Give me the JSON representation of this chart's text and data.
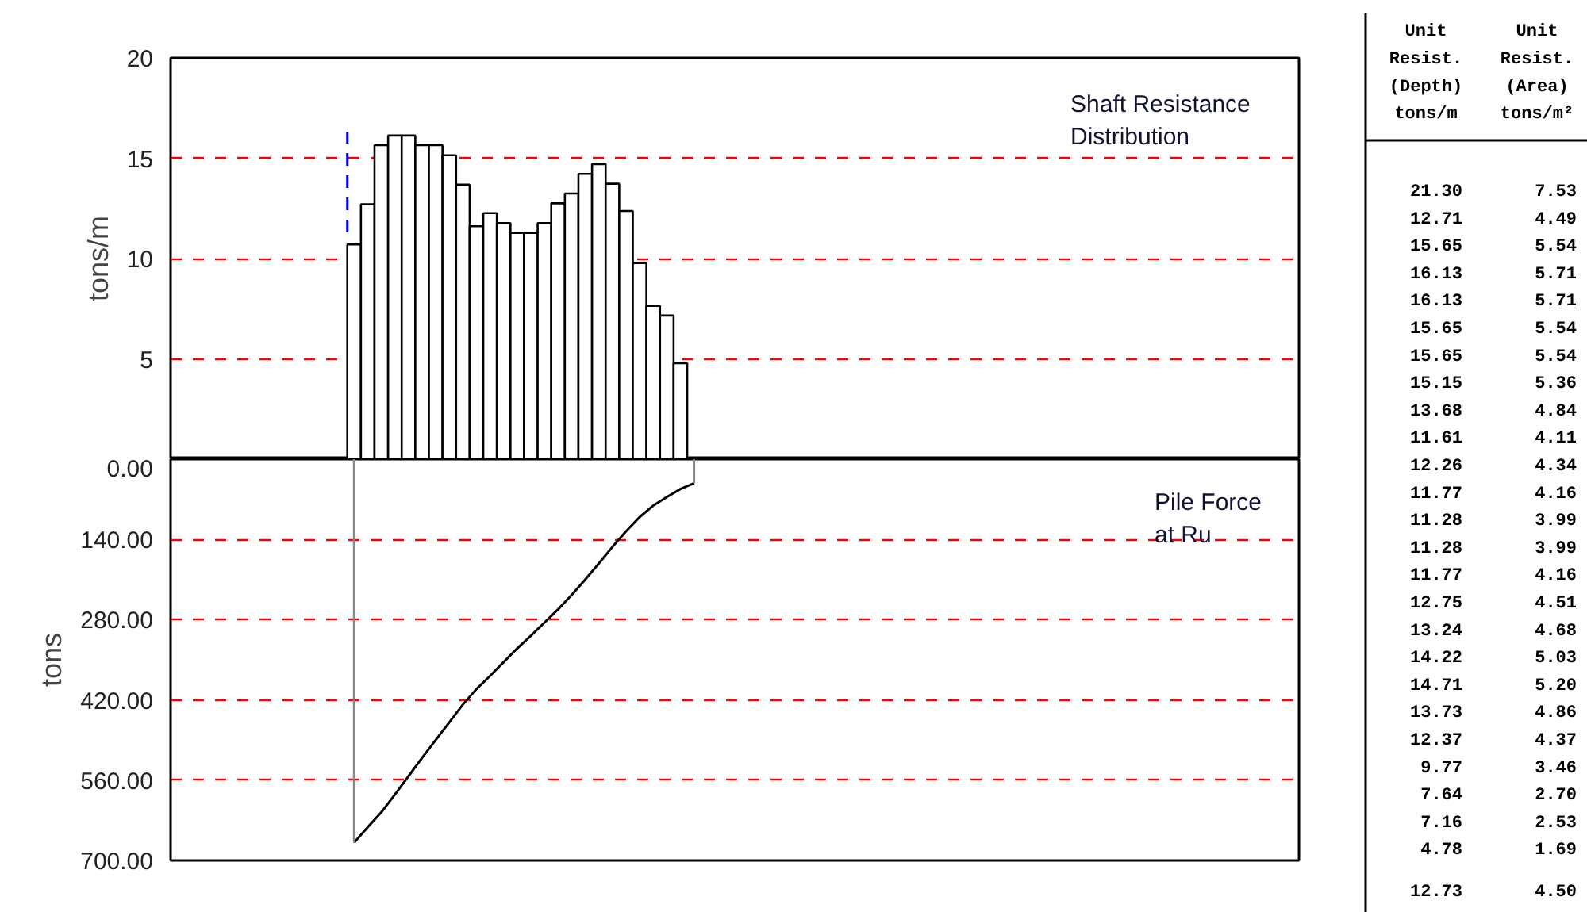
{
  "chart_data": [
    {
      "type": "bar",
      "ylabel": "tons/m",
      "annotations": [
        "Shaft Resistance\nDistribution"
      ],
      "ylim": [
        0,
        20
      ],
      "yticks": [
        5,
        10,
        15,
        20
      ],
      "grid": "y",
      "categories": [
        null,
        null,
        null,
        null,
        null,
        null,
        null,
        null,
        null,
        null,
        null,
        null,
        null,
        null,
        null,
        null,
        null,
        null,
        null,
        null,
        null,
        null,
        null,
        null,
        null,
        null,
        null,
        null,
        null,
        null,
        null,
        null,
        null,
        null,
        null,
        null,
        null,
        null,
        null,
        null,
        null,
        null,
        null,
        null,
        null,
        null,
        null,
        null,
        null,
        null,
        null,
        null,
        null,
        null,
        null,
        null,
        null,
        null,
        null,
        null,
        null,
        null,
        null,
        null,
        null,
        null,
        null,
        null,
        null,
        null,
        null,
        null,
        null,
        null,
        null,
        null,
        null,
        null,
        null,
        null,
        null,
        null,
        null
      ],
      "color": "#ffffff",
      "values": [
        null,
        null,
        null,
        null,
        null,
        null,
        null,
        null,
        null,
        null,
        null,
        null,
        null,
        10.7,
        12.71,
        15.65,
        16.13,
        16.13,
        15.65,
        15.65,
        15.15,
        13.68,
        11.61,
        12.26,
        11.77,
        11.28,
        11.28,
        11.77,
        12.75,
        13.24,
        14.22,
        14.71,
        13.73,
        12.37,
        9.77,
        7.64,
        7.16,
        4.78,
        null,
        null,
        null,
        null,
        null,
        null,
        null,
        null,
        null,
        null,
        null,
        null,
        null,
        null,
        null,
        null,
        null,
        null,
        null,
        null,
        null,
        null,
        null,
        null,
        null,
        null,
        null,
        null,
        null,
        null,
        null,
        null,
        null,
        null,
        null,
        null,
        null,
        null,
        null,
        null,
        null,
        null,
        null,
        null,
        null
      ],
      "errors": [
        null,
        null,
        null,
        null,
        null,
        null,
        null,
        null,
        null,
        null,
        null,
        null,
        null,
        [
          11.3,
          16.3
        ],
        null,
        null,
        null,
        null,
        null,
        null,
        null,
        null,
        null,
        null,
        null,
        null,
        null,
        null,
        null,
        null,
        null,
        null,
        null,
        null,
        null,
        null,
        null,
        null,
        null,
        null,
        null,
        null,
        null,
        null,
        null,
        null,
        null,
        null,
        null,
        null,
        null,
        null,
        null,
        null,
        null,
        null,
        null,
        null,
        null,
        null,
        null,
        null,
        null,
        null,
        null,
        null,
        null,
        null,
        null,
        null,
        null,
        null,
        null,
        null,
        null,
        null,
        null,
        null,
        null,
        null,
        null,
        null,
        null
      ]
    },
    {
      "type": "line",
      "ylabel": "tons",
      "annotations": [
        "Pile Force\nat Ru"
      ],
      "ylim": [
        700,
        0
      ],
      "yticks": [
        {
          "value": 0,
          "label": "0.00"
        },
        {
          "value": 140,
          "label": "140.00"
        },
        {
          "value": 280,
          "label": "280.00"
        },
        {
          "value": 420,
          "label": "420.00"
        },
        {
          "value": 560,
          "label": "560.00"
        },
        {
          "value": 700,
          "label": "700.00"
        }
      ],
      "grid": "y",
      "categories": [
        null,
        null,
        null,
        null,
        null,
        null,
        null,
        null,
        null,
        null,
        null,
        null,
        null,
        null,
        null,
        null,
        null,
        null,
        null,
        null,
        null,
        null,
        null,
        null,
        null,
        null,
        null,
        null,
        null,
        null,
        null,
        null,
        null,
        null,
        null,
        null,
        null,
        null,
        null,
        null,
        null,
        null,
        null,
        null,
        null,
        null,
        null,
        null,
        null,
        null,
        null,
        null,
        null,
        null,
        null,
        null,
        null,
        null,
        null,
        null,
        null,
        null,
        null,
        null,
        null,
        null,
        null,
        null,
        null,
        null,
        null,
        null,
        null,
        null,
        null,
        null,
        null,
        null,
        null,
        null,
        null,
        null,
        null
      ],
      "color": "#000000",
      "values": [
        null,
        null,
        null,
        null,
        null,
        null,
        null,
        null,
        null,
        null,
        null,
        null,
        null,
        669,
        642,
        616,
        585,
        553,
        521,
        490,
        459,
        428,
        401,
        378,
        354,
        330,
        308,
        285,
        262,
        237,
        210,
        182,
        153,
        126,
        101,
        81,
        66,
        52,
        42,
        null,
        null,
        null,
        null,
        null,
        null,
        null,
        null,
        null,
        null,
        null,
        null,
        null,
        null,
        null,
        null,
        null,
        null,
        null,
        null,
        null,
        null,
        null,
        null,
        null,
        null,
        null,
        null,
        null,
        null,
        null,
        null,
        null,
        null,
        null,
        null,
        null,
        null,
        null,
        null,
        null,
        null,
        null,
        null
      ],
      "errors": [
        null,
        null,
        null,
        null,
        null,
        null,
        null,
        null,
        null,
        null,
        null,
        null,
        null,
        [
          0,
          669
        ],
        null,
        null,
        null,
        null,
        null,
        null,
        null,
        null,
        null,
        null,
        null,
        null,
        null,
        null,
        null,
        null,
        null,
        null,
        null,
        null,
        null,
        null,
        null,
        null,
        [
          0,
          42
        ],
        null,
        null,
        null,
        null,
        null,
        null,
        null,
        null,
        null,
        null,
        null,
        null,
        null,
        null,
        null,
        null,
        null,
        null,
        null,
        null,
        null,
        null,
        null,
        null,
        null,
        null,
        null,
        null,
        null,
        null,
        null,
        null,
        null,
        null,
        null,
        null,
        null,
        null,
        null,
        null,
        null,
        null,
        null,
        null
      ]
    },
    {
      "type": "other",
      "annotations": [
        "Unit\nResist.\n(Depth)\ntons/m",
        "Unit\nResist.\n(Area)\ntons/m²",
        "21.30",
        "7.53",
        "12.71",
        "4.49",
        "15.65",
        "5.54",
        "16.13",
        "5.71",
        "16.13",
        "5.71",
        "15.65",
        "5.54",
        "15.65",
        "5.54",
        "15.15",
        "5.36",
        "13.68",
        "4.84",
        "11.61",
        "4.11",
        "12.26",
        "4.34",
        "11.77",
        "4.16",
        "11.28",
        "3.99",
        "11.28",
        "3.99",
        "11.77",
        "4.16",
        "12.75",
        "4.51",
        "13.24",
        "4.68",
        "14.22",
        "5.03",
        "14.71",
        "5.20",
        "13.73",
        "4.86",
        "12.37",
        "4.37",
        "9.77",
        "3.46",
        "7.64",
        "2.70",
        "7.16",
        "2.53",
        "4.78",
        "1.69",
        "12.73",
        "4.50"
      ]
    }
  ]
}
